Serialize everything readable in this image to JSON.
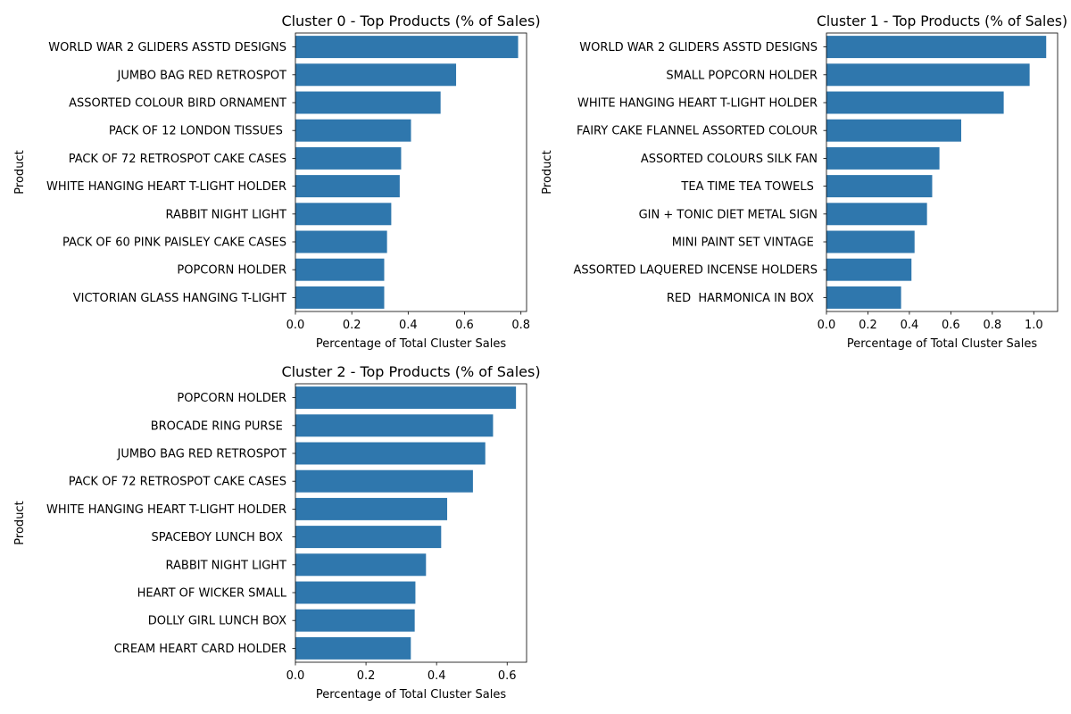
{
  "figure": {
    "bar_color": "#2f77ad",
    "background": "#ffffff"
  },
  "chart_data": [
    {
      "type": "bar",
      "orientation": "horizontal",
      "title": "Cluster 0 - Top Products (% of Sales)",
      "xlabel": "Percentage of Total Cluster Sales",
      "ylabel": "Product",
      "xlim": [
        0,
        0.82
      ],
      "xticks": [
        0.0,
        0.2,
        0.4,
        0.6,
        0.8
      ],
      "xtick_labels": [
        "0.0",
        "0.2",
        "0.4",
        "0.6",
        "0.8"
      ],
      "categories": [
        "WORLD WAR 2 GLIDERS ASSTD DESIGNS",
        "JUMBO BAG RED RETROSPOT",
        "ASSORTED COLOUR BIRD ORNAMENT",
        "PACK OF 12 LONDON TISSUES ",
        "PACK OF 72 RETROSPOT CAKE CASES",
        "WHITE HANGING HEART T-LIGHT HOLDER",
        "RABBIT NIGHT LIGHT",
        "PACK OF 60 PINK PAISLEY CAKE CASES",
        "POPCORN HOLDER",
        "VICTORIAN GLASS HANGING T-LIGHT"
      ],
      "values": [
        0.79,
        0.57,
        0.515,
        0.41,
        0.375,
        0.37,
        0.34,
        0.325,
        0.315,
        0.315
      ]
    },
    {
      "type": "bar",
      "orientation": "horizontal",
      "title": "Cluster 1 - Top Products (% of Sales)",
      "xlabel": "Percentage of Total Cluster Sales",
      "ylabel": "Product",
      "xlim": [
        0,
        1.115
      ],
      "xticks": [
        0.0,
        0.2,
        0.4,
        0.6,
        0.8,
        1.0
      ],
      "xtick_labels": [
        "0.0",
        "0.2",
        "0.4",
        "0.6",
        "0.8",
        "1.0"
      ],
      "categories": [
        "WORLD WAR 2 GLIDERS ASSTD DESIGNS",
        "SMALL POPCORN HOLDER",
        "WHITE HANGING HEART T-LIGHT HOLDER",
        "FAIRY CAKE FLANNEL ASSORTED COLOUR",
        "ASSORTED COLOURS SILK FAN",
        "TEA TIME TEA TOWELS ",
        "GIN + TONIC DIET METAL SIGN",
        "MINI PAINT SET VINTAGE ",
        "ASSORTED LAQUERED INCENSE HOLDERS",
        "RED  HARMONICA IN BOX "
      ],
      "values": [
        1.06,
        0.98,
        0.855,
        0.65,
        0.545,
        0.51,
        0.485,
        0.425,
        0.41,
        0.36
      ]
    },
    {
      "type": "bar",
      "orientation": "horizontal",
      "title": "Cluster 2 - Top Products (% of Sales)",
      "xlabel": "Percentage of Total Cluster Sales",
      "ylabel": "Product",
      "xlim": [
        0,
        0.655
      ],
      "xticks": [
        0.0,
        0.2,
        0.4,
        0.6
      ],
      "xtick_labels": [
        "0.0",
        "0.2",
        "0.4",
        "0.6"
      ],
      "categories": [
        "POPCORN HOLDER",
        "BROCADE RING PURSE ",
        "JUMBO BAG RED RETROSPOT",
        "PACK OF 72 RETROSPOT CAKE CASES",
        "WHITE HANGING HEART T-LIGHT HOLDER",
        "SPACEBOY LUNCH BOX ",
        "RABBIT NIGHT LIGHT",
        "HEART OF WICKER SMALL",
        "DOLLY GIRL LUNCH BOX",
        "CREAM HEART CARD HOLDER"
      ],
      "values": [
        0.625,
        0.56,
        0.538,
        0.503,
        0.43,
        0.413,
        0.37,
        0.34,
        0.338,
        0.327
      ]
    }
  ]
}
